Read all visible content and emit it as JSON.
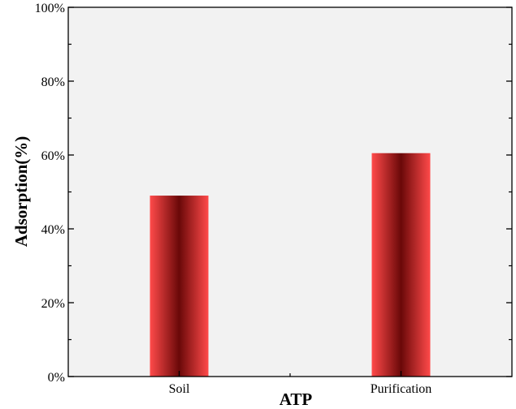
{
  "chart_data": {
    "type": "bar",
    "title": "",
    "xlabel": "ATP",
    "ylabel": "Adsorption(%)",
    "categories": [
      "Soil",
      "Purification"
    ],
    "values": [
      49,
      60.5
    ],
    "ylim": [
      0,
      100
    ],
    "yticks": [
      "0%",
      "20%",
      "40%",
      "60%",
      "80%",
      "100%"
    ],
    "ytick_values": [
      0,
      20,
      40,
      60,
      80,
      100
    ],
    "grid": false,
    "legend": "none",
    "colors": {
      "plot_background": "#f2f2f2",
      "bar_edge": "#ff4a4a",
      "bar_center": "#6a0808"
    }
  }
}
